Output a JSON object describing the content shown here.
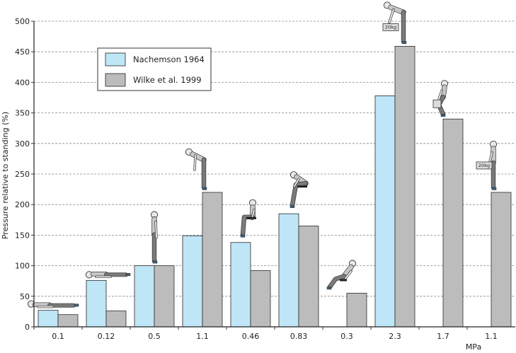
{
  "chart_data": {
    "type": "bar",
    "title": "",
    "ylabel": "Pressure relative to standing (%)",
    "unit_label": "MPa",
    "ylim": [
      0,
      500
    ],
    "yticks": [
      0,
      50,
      100,
      150,
      200,
      250,
      300,
      350,
      400,
      450,
      500
    ],
    "grid": true,
    "legend_position": "top-left",
    "categories": [
      "0.1",
      "0.12",
      "0.5",
      "1.1",
      "0.46",
      "0.83",
      "0.3",
      "2.3",
      "1.7",
      "1.1"
    ],
    "series": [
      {
        "name": "Nachemson 1964",
        "color": "#bfe6f7",
        "values": [
          27,
          76,
          100,
          149,
          138,
          185,
          null,
          378,
          null,
          null
        ]
      },
      {
        "name": "Wilke et al. 1999",
        "color": "#bcbcbc",
        "values": [
          20,
          26,
          100,
          220,
          92,
          165,
          55,
          459,
          340,
          220
        ]
      }
    ],
    "icons": [
      {
        "name": "lying-supine-figure-icon",
        "category": 0
      },
      {
        "name": "lying-prone-figure-icon",
        "category": 1
      },
      {
        "name": "standing-figure-icon",
        "category": 2
      },
      {
        "name": "standing-bent-forward-figure-icon",
        "category": 3
      },
      {
        "name": "sitting-upright-figure-icon",
        "category": 4
      },
      {
        "name": "sitting-bent-forward-figure-icon",
        "category": 5
      },
      {
        "name": "sitting-reclined-figure-icon",
        "category": 6
      },
      {
        "name": "lifting-bent-with-weight-figure-icon",
        "category": 7,
        "weight_label": "20kg"
      },
      {
        "name": "lifting-squat-with-weight-figure-icon",
        "category": 8
      },
      {
        "name": "standing-holding-weight-figure-icon",
        "category": 9,
        "weight_label": "20kg"
      }
    ]
  }
}
